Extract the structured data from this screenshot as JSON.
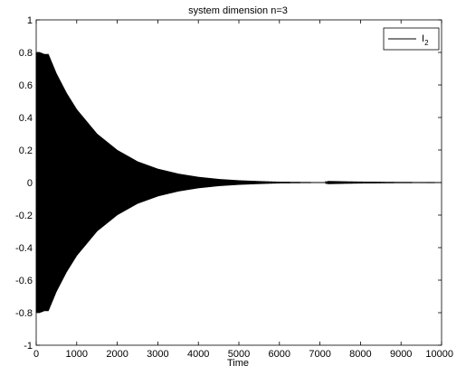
{
  "chart_data": {
    "type": "line",
    "title": "system dimension n=3",
    "xlabel": "Time",
    "ylabel": "",
    "xlim": [
      0,
      10000
    ],
    "ylim": [
      -1,
      1
    ],
    "xticks": [
      0,
      1000,
      2000,
      3000,
      4000,
      5000,
      6000,
      7000,
      8000,
      9000,
      10000
    ],
    "yticks": [
      -1,
      -0.8,
      -0.6,
      -0.4,
      -0.2,
      0,
      0.2,
      0.4,
      0.6,
      0.8,
      1
    ],
    "grid": false,
    "legend_position": "top-right",
    "series": [
      {
        "name": "I",
        "name_subscript": "2",
        "color": "#000000",
        "description_points": {
          "x": [
            0,
            100,
            200,
            300,
            500,
            750,
            1000,
            1500,
            2000,
            2500,
            3000,
            3500,
            4000,
            4500,
            5000,
            5500,
            6000,
            7000,
            8000,
            9000,
            10000
          ],
          "upper_envelope": [
            0.8,
            0.8,
            0.79,
            0.79,
            0.67,
            0.55,
            0.45,
            0.3,
            0.2,
            0.13,
            0.085,
            0.055,
            0.035,
            0.022,
            0.014,
            0.009,
            0.005,
            0.002,
            0.001,
            0.0005,
            0.0002
          ],
          "lower_envelope": [
            -0.8,
            -0.8,
            -0.79,
            -0.79,
            -0.67,
            -0.55,
            -0.45,
            -0.3,
            -0.2,
            -0.13,
            -0.085,
            -0.055,
            -0.035,
            -0.022,
            -0.014,
            -0.009,
            -0.005,
            -0.002,
            -0.001,
            -0.0005,
            -0.0002
          ]
        }
      }
    ]
  }
}
